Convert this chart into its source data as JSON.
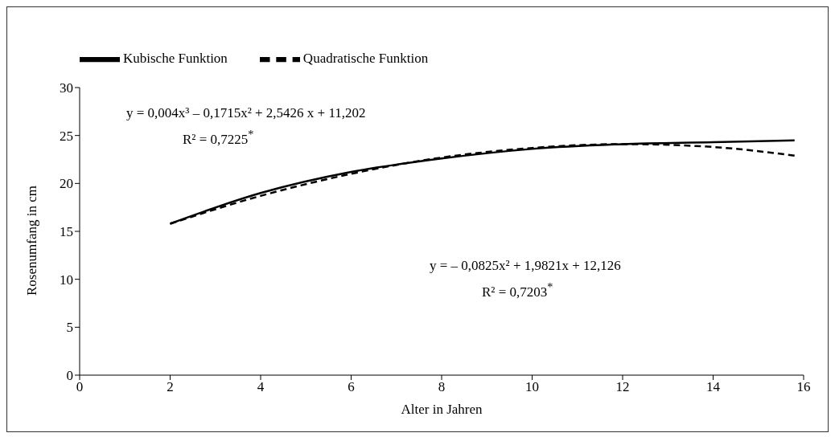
{
  "chart_data": {
    "type": "line",
    "xlabel": "Alter in Jahren",
    "ylabel": "Rosenumfang in cm",
    "x": [
      2,
      4,
      6,
      8,
      10,
      12,
      14,
      15.8
    ],
    "series": [
      {
        "name": "Quadratische Funktion",
        "color": "#000000",
        "line_style": "dashed",
        "values": [
          15.8,
          18.7,
          21.0,
          22.7,
          23.7,
          24.1,
          23.8,
          22.9
        ]
      },
      {
        "name": "Kubische Funktion",
        "color": "#000000",
        "line_style": "solid",
        "values": [
          15.8,
          19.0,
          21.2,
          22.6,
          23.6,
          24.1,
          24.3,
          24.5
        ]
      }
    ],
    "xlim": [
      0,
      16
    ],
    "xticks": [
      0,
      2,
      4,
      6,
      8,
      10,
      12,
      14,
      16
    ],
    "ylim": [
      0,
      30
    ],
    "yticks": [
      0,
      5,
      10,
      15,
      20,
      25,
      30
    ],
    "grid": false,
    "legend": "top left",
    "marker": "none",
    "annotations": [
      "y = 0,004x³ – 0,1715x² + 2,5426 x + 11,202",
      "R² = 0,7225$^{*}$",
      "y = – 0,0825x² + 1,9821x + 12,126",
      "R² = 0,7203$^{*}$"
    ]
  }
}
